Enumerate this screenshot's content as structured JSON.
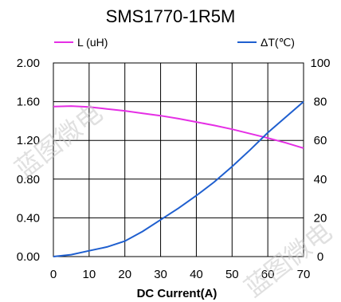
{
  "watermark": "蓝图微电",
  "chart_data": {
    "type": "line",
    "title": "SMS1770-1R5M",
    "xlabel": "DC Current(A)",
    "x_ticks": [
      "0",
      "10",
      "20",
      "30",
      "40",
      "50",
      "60",
      "70"
    ],
    "y_left_ticks": [
      "0.00",
      "0.40",
      "0.80",
      "1.20",
      "1.60",
      "2.00"
    ],
    "y_right_ticks": [
      "0",
      "20",
      "40",
      "60",
      "80",
      "100"
    ],
    "xlim": [
      0,
      70
    ],
    "ylim_left": [
      0,
      2.0
    ],
    "ylim_right": [
      0,
      100
    ],
    "grid": true,
    "series": [
      {
        "name": "L (uH)",
        "axis": "left",
        "color": "#e52fe5",
        "x": [
          0,
          5,
          10,
          15,
          20,
          25,
          30,
          35,
          40,
          45,
          50,
          55,
          60,
          65,
          70
        ],
        "y": [
          1.55,
          1.555,
          1.545,
          1.525,
          1.505,
          1.48,
          1.455,
          1.425,
          1.39,
          1.355,
          1.315,
          1.27,
          1.225,
          1.175,
          1.12
        ]
      },
      {
        "name": "ΔT(℃)",
        "axis": "right",
        "color": "#1f5fcf",
        "x": [
          0,
          5,
          10,
          15,
          20,
          25,
          30,
          35,
          40,
          45,
          50,
          55,
          60,
          65,
          70
        ],
        "y": [
          0,
          1,
          3,
          5,
          8,
          13,
          19,
          25,
          31.5,
          38.5,
          46.5,
          55,
          64,
          72,
          80
        ]
      }
    ]
  }
}
